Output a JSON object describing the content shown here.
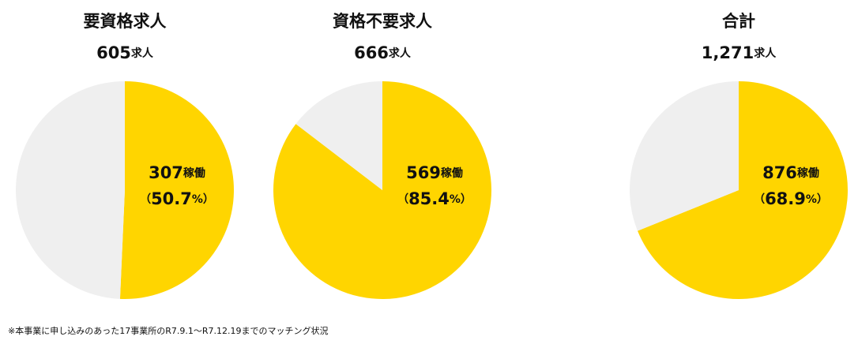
{
  "chart_data": [
    {
      "type": "pie",
      "title": "要資格求人",
      "subtitle": "605求人",
      "values": [
        50.7,
        49.3
      ],
      "colors": [
        "#ffd500",
        "#efefef"
      ],
      "value_labels": [
        "（50.7%）",
        null
      ],
      "count_label": "307稼働"
    },
    {
      "type": "pie",
      "title": "資格不要求人",
      "subtitle": "666求人",
      "values": [
        85.4,
        14.6
      ],
      "colors": [
        "#ffd500",
        "#efefef"
      ],
      "value_labels": [
        "（85.4%）",
        null
      ],
      "count_label": "569稼働"
    },
    {
      "type": "pie",
      "title": "合計",
      "subtitle": "1,271求人",
      "values": [
        68.9,
        31.1
      ],
      "colors": [
        "#ffd500",
        "#efefef"
      ],
      "value_labels": [
        "（68.9%）",
        null
      ],
      "count_label": "876稼働"
    }
  ],
  "footnote": "※本事業に申し込みのあった17事業所のR7.9.1～R7.12.19までのマッチング状況"
}
